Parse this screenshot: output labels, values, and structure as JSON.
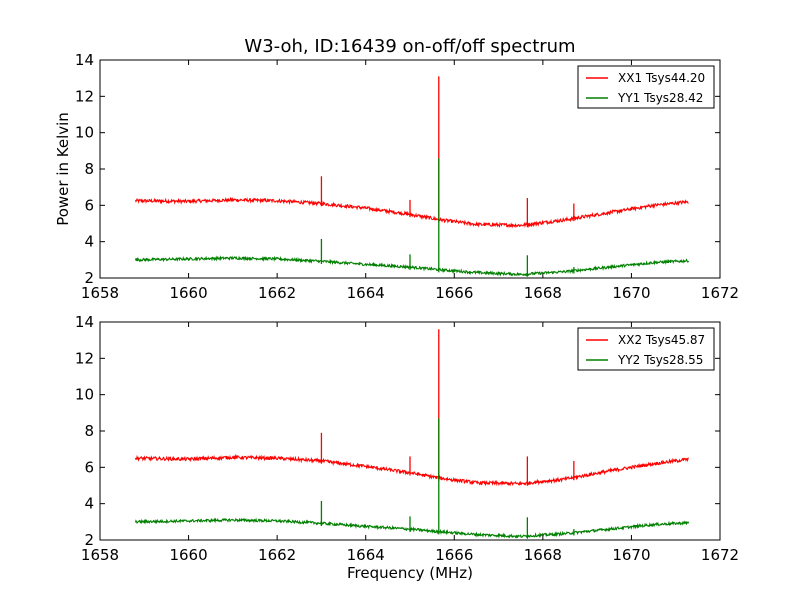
{
  "figure_title": "W3-oh, ID:16439 on-off/off spectrum",
  "chart_data": [
    {
      "type": "line",
      "title": "W3-oh, ID:16439 on-off/off spectrum",
      "xlabel": "",
      "ylabel": "Power in Kelvin",
      "xlim": [
        1658,
        1672
      ],
      "ylim": [
        2,
        14
      ],
      "xticks": [
        "1658",
        "1660",
        "1662",
        "1664",
        "1666",
        "1668",
        "1670",
        "1672"
      ],
      "yticks": [
        "2",
        "4",
        "6",
        "8",
        "10",
        "12",
        "14"
      ],
      "grid": false,
      "legend_position": "top-right",
      "series": [
        {
          "name": "XX1 Tsys44.20",
          "color": "#ff0000",
          "x": [
            1658.8,
            1660.0,
            1661.0,
            1662.0,
            1663.0,
            1664.0,
            1665.0,
            1665.7,
            1666.5,
            1667.5,
            1668.5,
            1669.5,
            1670.5,
            1671.3
          ],
          "y": [
            6.25,
            6.22,
            6.3,
            6.25,
            6.1,
            5.85,
            5.5,
            5.2,
            4.95,
            4.9,
            5.2,
            5.6,
            6.0,
            6.2
          ],
          "spikes": [
            {
              "x": 1663.0,
              "y": 7.6
            },
            {
              "x": 1665.0,
              "y": 6.3
            },
            {
              "x": 1665.65,
              "y": 13.1
            },
            {
              "x": 1667.65,
              "y": 6.4
            },
            {
              "x": 1668.7,
              "y": 6.1
            }
          ]
        },
        {
          "name": "YY1 Tsys28.42",
          "color": "#008000",
          "x": [
            1658.8,
            1660.0,
            1661.0,
            1662.0,
            1663.0,
            1664.0,
            1665.0,
            1665.7,
            1666.5,
            1667.5,
            1668.5,
            1669.5,
            1670.5,
            1671.3
          ],
          "y": [
            3.0,
            3.05,
            3.1,
            3.05,
            2.92,
            2.75,
            2.6,
            2.45,
            2.3,
            2.2,
            2.35,
            2.6,
            2.85,
            2.95
          ],
          "spikes": [
            {
              "x": 1663.0,
              "y": 4.15
            },
            {
              "x": 1665.0,
              "y": 3.3
            },
            {
              "x": 1665.65,
              "y": 8.6
            },
            {
              "x": 1667.65,
              "y": 3.25
            },
            {
              "x": 1668.7,
              "y": 2.6
            }
          ]
        }
      ]
    },
    {
      "type": "line",
      "title": "",
      "xlabel": "Frequency (MHz)",
      "ylabel": "",
      "xlim": [
        1658,
        1672
      ],
      "ylim": [
        2,
        14
      ],
      "xticks": [
        "1658",
        "1660",
        "1662",
        "1664",
        "1666",
        "1668",
        "1670",
        "1672"
      ],
      "yticks": [
        "2",
        "4",
        "6",
        "8",
        "10",
        "12",
        "14"
      ],
      "grid": false,
      "legend_position": "top-right",
      "series": [
        {
          "name": "XX2 Tsys45.87",
          "color": "#ff0000",
          "x": [
            1658.8,
            1660.0,
            1661.0,
            1662.0,
            1663.0,
            1664.0,
            1665.0,
            1665.7,
            1666.5,
            1667.5,
            1668.5,
            1669.5,
            1670.5,
            1671.3
          ],
          "y": [
            6.5,
            6.45,
            6.55,
            6.5,
            6.35,
            6.05,
            5.7,
            5.4,
            5.15,
            5.1,
            5.35,
            5.8,
            6.2,
            6.45
          ],
          "spikes": [
            {
              "x": 1663.0,
              "y": 7.9
            },
            {
              "x": 1665.0,
              "y": 6.6
            },
            {
              "x": 1665.65,
              "y": 13.6
            },
            {
              "x": 1667.65,
              "y": 6.6
            },
            {
              "x": 1668.7,
              "y": 6.35
            }
          ]
        },
        {
          "name": "YY2 Tsys28.55",
          "color": "#008000",
          "x": [
            1658.8,
            1660.0,
            1661.0,
            1662.0,
            1663.0,
            1664.0,
            1665.0,
            1665.7,
            1666.5,
            1667.5,
            1668.5,
            1669.5,
            1670.5,
            1671.3
          ],
          "y": [
            3.0,
            3.05,
            3.1,
            3.05,
            2.92,
            2.75,
            2.6,
            2.45,
            2.3,
            2.2,
            2.35,
            2.6,
            2.85,
            2.95
          ],
          "spikes": [
            {
              "x": 1663.0,
              "y": 4.15
            },
            {
              "x": 1665.0,
              "y": 3.3
            },
            {
              "x": 1665.65,
              "y": 8.7
            },
            {
              "x": 1667.65,
              "y": 3.25
            },
            {
              "x": 1668.7,
              "y": 2.6
            }
          ]
        }
      ]
    }
  ]
}
